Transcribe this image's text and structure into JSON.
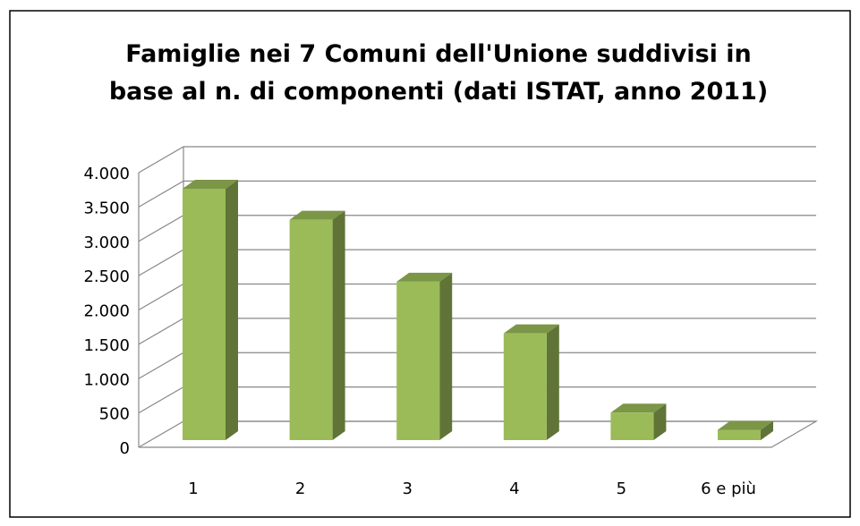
{
  "chart_data": {
    "type": "bar3d",
    "title": "Famiglie nei 7 Comuni dell'Unione suddivisi in base al n. di componenti (dati ISTAT, anno 2011)",
    "categories": [
      "1",
      "2",
      "3",
      "4",
      "5",
      "6 e più"
    ],
    "values": [
      3650,
      3200,
      2300,
      1550,
      400,
      150
    ],
    "color": "#9bbb59",
    "ylim": [
      0,
      4000
    ],
    "yticks": [
      0,
      500,
      {
        "value": 1000,
        "label": "1.000"
      },
      {
        "value": 1500,
        "label": "1.500"
      },
      {
        "value": 2000,
        "label": "2.000"
      },
      {
        "value": 2500,
        "label": "2.500"
      },
      {
        "value": 3000,
        "label": "3.000"
      },
      {
        "value": 3500,
        "label": "3.500"
      },
      {
        "value": 4000,
        "label": "4.000"
      }
    ],
    "grid": true
  }
}
